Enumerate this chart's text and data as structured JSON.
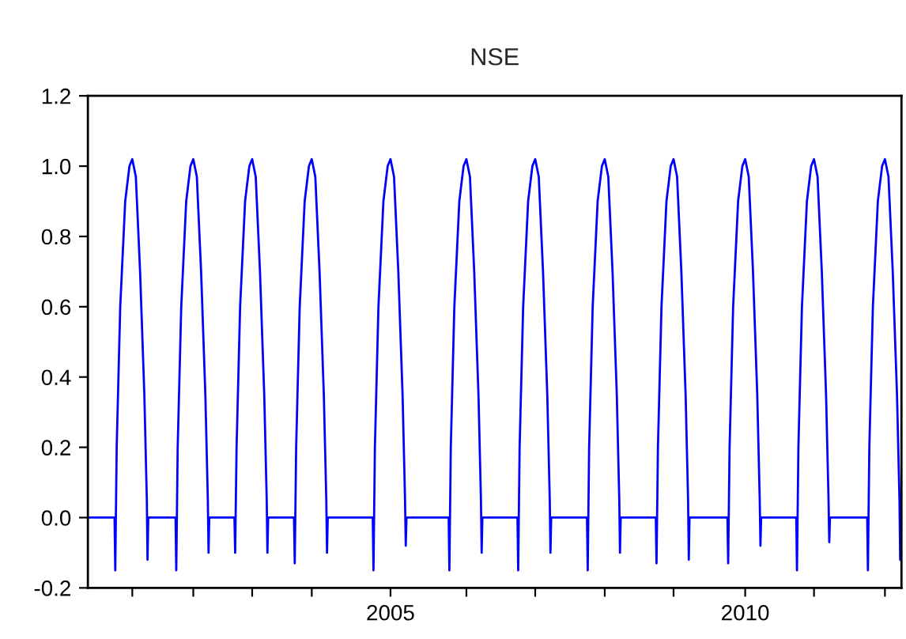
{
  "chart_data": {
    "type": "line",
    "title": "NSE",
    "xlim": [
      2000.734,
      2012.203
    ],
    "xticks": [
      {
        "value": 2001.36,
        "label": null
      },
      {
        "value": 2002.22,
        "label": null
      },
      {
        "value": 2003.05,
        "label": null
      },
      {
        "value": 2003.89,
        "label": null
      },
      2005,
      {
        "value": 2006.07,
        "label": null
      },
      {
        "value": 2007.04,
        "label": null
      },
      {
        "value": 2008.02,
        "label": null
      },
      {
        "value": 2008.99,
        "label": null
      },
      2010,
      {
        "value": 2010.97,
        "label": null
      },
      {
        "value": 2011.97,
        "label": null
      }
    ],
    "ylim": [
      -0.2,
      1.2
    ],
    "yticks": [
      {
        "value": -0.2,
        "label": "-0.2"
      },
      {
        "value": 0,
        "label": "0.0"
      },
      {
        "value": 0.2,
        "label": "0.2"
      },
      {
        "value": 0.4,
        "label": "0.4"
      },
      {
        "value": 0.6,
        "label": "0.6"
      },
      {
        "value": 0.8,
        "label": "0.8"
      },
      {
        "value": 1.0,
        "label": "1.0"
      },
      {
        "value": 1.2,
        "label": "1.2"
      }
    ],
    "grid": false,
    "series": [
      {
        "color": "#0000ff",
        "x": [
          2000.74,
          2001.11,
          2001.12,
          2001.14,
          2001.19,
          2001.26,
          2001.32,
          2001.36,
          2001.41,
          2001.47,
          2001.53,
          2001.565,
          2001.575,
          2001.585,
          2001.97,
          2001.98,
          2002.0,
          2002.05,
          2002.12,
          2002.18,
          2002.22,
          2002.27,
          2002.33,
          2002.39,
          2002.425,
          2002.435,
          2002.445,
          2002.8,
          2002.81,
          2002.83,
          2002.88,
          2002.95,
          2003.01,
          2003.05,
          2003.1,
          2003.16,
          2003.22,
          2003.255,
          2003.265,
          2003.275,
          2003.64,
          2003.65,
          2003.67,
          2003.72,
          2003.79,
          2003.85,
          2003.89,
          2003.94,
          2004.0,
          2004.06,
          2004.095,
          2004.105,
          2004.115,
          2004.75,
          2004.76,
          2004.78,
          2004.83,
          2004.9,
          2004.96,
          2005.0,
          2005.05,
          2005.11,
          2005.17,
          2005.205,
          2005.215,
          2005.225,
          2005.82,
          2005.83,
          2005.85,
          2005.9,
          2005.97,
          2006.03,
          2006.07,
          2006.12,
          2006.18,
          2006.24,
          2006.275,
          2006.285,
          2006.295,
          2006.79,
          2006.8,
          2006.82,
          2006.87,
          2006.94,
          2007.0,
          2007.04,
          2007.09,
          2007.15,
          2007.21,
          2007.245,
          2007.255,
          2007.265,
          2007.77,
          2007.78,
          2007.8,
          2007.85,
          2007.92,
          2007.98,
          2008.02,
          2008.07,
          2008.13,
          2008.19,
          2008.225,
          2008.235,
          2008.245,
          2008.74,
          2008.75,
          2008.77,
          2008.82,
          2008.89,
          2008.95,
          2008.99,
          2009.04,
          2009.1,
          2009.16,
          2009.195,
          2009.205,
          2009.215,
          2009.75,
          2009.76,
          2009.78,
          2009.83,
          2009.9,
          2009.96,
          2010.0,
          2010.05,
          2010.11,
          2010.17,
          2010.205,
          2010.215,
          2010.225,
          2010.72,
          2010.73,
          2010.75,
          2010.8,
          2010.87,
          2010.93,
          2010.97,
          2011.02,
          2011.08,
          2011.14,
          2011.175,
          2011.185,
          2011.195,
          2011.72,
          2011.73,
          2011.75,
          2011.8,
          2011.87,
          2011.93,
          2011.97,
          2012.02,
          2012.08,
          2012.14,
          2012.175,
          2012.185,
          2012.195
        ],
        "values": [
          0,
          0,
          -0.15,
          0.2,
          0.6,
          0.9,
          1.0,
          1.02,
          0.97,
          0.7,
          0.35,
          0.05,
          -0.12,
          0,
          0,
          -0.15,
          0.2,
          0.6,
          0.9,
          1.0,
          1.02,
          0.97,
          0.7,
          0.35,
          0.05,
          -0.1,
          0,
          0,
          -0.1,
          0.2,
          0.6,
          0.9,
          1.0,
          1.02,
          0.97,
          0.7,
          0.35,
          0.05,
          -0.1,
          0,
          0,
          -0.13,
          0.2,
          0.6,
          0.9,
          1.0,
          1.02,
          0.97,
          0.7,
          0.35,
          0.05,
          -0.1,
          0,
          0,
          -0.15,
          0.2,
          0.6,
          0.9,
          1.0,
          1.02,
          0.97,
          0.7,
          0.35,
          0.05,
          -0.08,
          0,
          0,
          -0.15,
          0.2,
          0.6,
          0.9,
          1.0,
          1.02,
          0.97,
          0.7,
          0.35,
          0.05,
          -0.1,
          0,
          0,
          -0.15,
          0.2,
          0.6,
          0.9,
          1.0,
          1.02,
          0.97,
          0.7,
          0.35,
          0.05,
          -0.1,
          0,
          0,
          -0.15,
          0.2,
          0.6,
          0.9,
          1.0,
          1.02,
          0.97,
          0.7,
          0.35,
          0.05,
          -0.1,
          0,
          0,
          -0.13,
          0.2,
          0.6,
          0.9,
          1.0,
          1.02,
          0.97,
          0.7,
          0.35,
          0.05,
          -0.12,
          0,
          0,
          -0.13,
          0.2,
          0.6,
          0.9,
          1.0,
          1.02,
          0.97,
          0.7,
          0.35,
          0.05,
          -0.08,
          0,
          0,
          -0.15,
          0.2,
          0.6,
          0.9,
          1.0,
          1.02,
          0.97,
          0.7,
          0.35,
          0.05,
          -0.07,
          0,
          0,
          -0.15,
          0.2,
          0.6,
          0.9,
          1.0,
          1.02,
          0.97,
          0.7,
          0.35,
          0.05,
          -0.12,
          0
        ]
      }
    ]
  }
}
